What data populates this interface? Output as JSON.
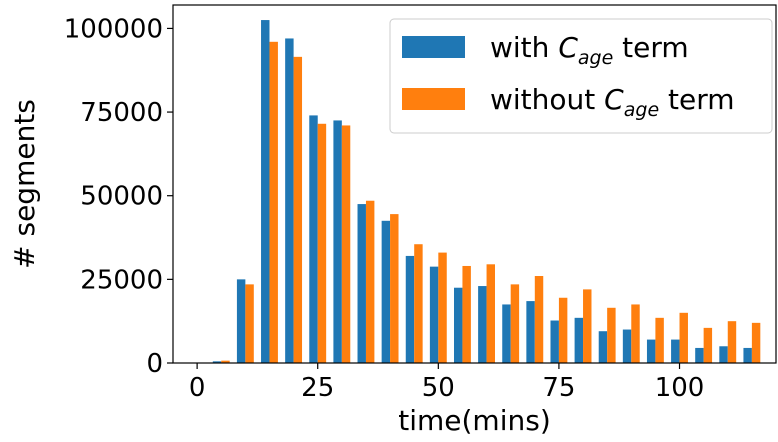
{
  "chart_data": {
    "type": "bar",
    "xlabel": "time(mins)",
    "ylabel": "# segments",
    "xlim": [
      -5,
      120
    ],
    "ylim": [
      0,
      107000
    ],
    "xticks": [
      "0",
      "25",
      "50",
      "75",
      "100"
    ],
    "yticks": [
      "0",
      "25000",
      "50000",
      "75000",
      "100000"
    ],
    "bin_width": 5,
    "x": [
      5,
      10,
      15,
      20,
      25,
      30,
      35,
      40,
      45,
      50,
      55,
      60,
      65,
      70,
      75,
      80,
      85,
      90,
      95,
      100,
      105,
      110,
      115
    ],
    "series": [
      {
        "name_prefix": "with ",
        "name_symbol": "C",
        "name_subscript": "age",
        "name_suffix": " term",
        "color": "#1f77b4",
        "values": [
          500,
          25000,
          102500,
          97000,
          74000,
          72500,
          47500,
          42500,
          32000,
          28800,
          22500,
          23000,
          17500,
          18500,
          12700,
          13500,
          9500,
          10000,
          7000,
          7000,
          4500,
          5000,
          4500
        ]
      },
      {
        "name_prefix": "without ",
        "name_symbol": "C",
        "name_subscript": "age",
        "name_suffix": " term",
        "color": "#ff7f0e",
        "values": [
          700,
          23500,
          96000,
          91500,
          71500,
          71000,
          48500,
          44500,
          35500,
          33000,
          29000,
          29500,
          23500,
          26000,
          19500,
          22000,
          16500,
          17500,
          13500,
          15000,
          10500,
          12500,
          12000
        ]
      }
    ],
    "legend_position": "upper-right",
    "grid": false
  }
}
